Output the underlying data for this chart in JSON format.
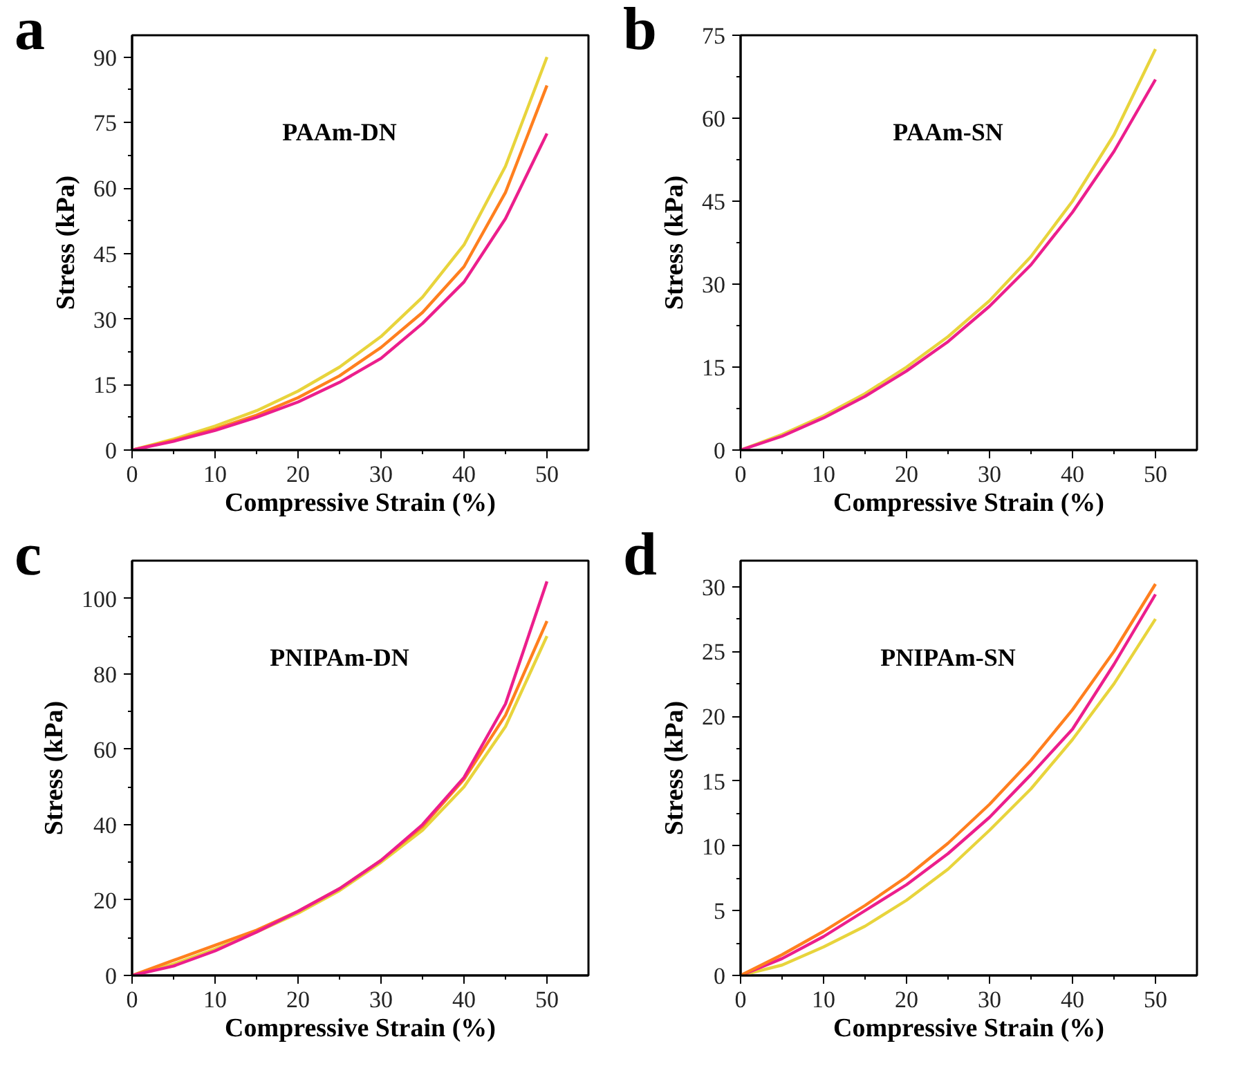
{
  "chart_data": [
    {
      "type": "line",
      "title": "PAAm-DN",
      "xlabel": "Compressive Strain (%)",
      "ylabel": "Stress (kPa)",
      "annotations": [
        "a"
      ],
      "xlim": [
        0,
        55
      ],
      "ylim": [
        0,
        95
      ],
      "xticks": [
        0,
        10,
        20,
        30,
        40,
        50
      ],
      "yticks": [
        0,
        15,
        30,
        45,
        60,
        75,
        90
      ],
      "line_style": "solid",
      "x": [
        0,
        5,
        10,
        15,
        20,
        25,
        30,
        35,
        40,
        45,
        50
      ],
      "series": [
        {
          "color": "#e8d43c",
          "values": [
            0,
            2.5,
            5.5,
            9,
            13.5,
            19,
            26,
            35,
            47,
            65,
            90
          ]
        },
        {
          "color": "#ff7f1e",
          "values": [
            0,
            2.2,
            4.8,
            8,
            12,
            17,
            23.5,
            31.5,
            42,
            59,
            83.5
          ]
        },
        {
          "color": "#ec1e8c",
          "values": [
            0,
            2,
            4.5,
            7.5,
            11,
            15.5,
            21,
            29,
            38.5,
            53,
            72.5
          ]
        }
      ]
    },
    {
      "type": "line",
      "title": "PAAm-SN",
      "xlabel": "Compressive Strain (%)",
      "ylabel": "Stress (kPa)",
      "annotations": [
        "b"
      ],
      "xlim": [
        0,
        55
      ],
      "ylim": [
        0,
        75
      ],
      "xticks": [
        0,
        10,
        20,
        30,
        40,
        50
      ],
      "yticks": [
        0,
        15,
        30,
        45,
        60,
        75
      ],
      "line_style": "solid",
      "x": [
        0,
        5,
        10,
        15,
        20,
        25,
        30,
        35,
        40,
        45,
        50
      ],
      "series": [
        {
          "color": "#e8d43c",
          "values": [
            0,
            2.8,
            6.2,
            10.2,
            15,
            20.5,
            27,
            35,
            45,
            57,
            72.5
          ]
        },
        {
          "color": "#ec1e8c",
          "values": [
            0,
            2.5,
            5.8,
            9.7,
            14.3,
            19.6,
            26,
            33.5,
            43,
            54,
            67
          ]
        }
      ]
    },
    {
      "type": "line",
      "title": "PNIPAm-DN",
      "xlabel": "Compressive Strain (%)",
      "ylabel": "Stress (kPa)",
      "annotations": [
        "c"
      ],
      "xlim": [
        0,
        55
      ],
      "ylim": [
        0,
        110
      ],
      "xticks": [
        0,
        10,
        20,
        30,
        40,
        50
      ],
      "yticks": [
        0,
        20,
        40,
        60,
        80,
        100
      ],
      "line_style": "solid",
      "x": [
        0,
        5,
        10,
        15,
        20,
        25,
        30,
        35,
        40,
        45,
        50
      ],
      "series": [
        {
          "color": "#e8d43c",
          "values": [
            0,
            3,
            7,
            11.5,
            16.5,
            22.5,
            30,
            38.5,
            50,
            66,
            90
          ]
        },
        {
          "color": "#ff7f1e",
          "values": [
            0,
            4,
            8,
            12,
            17,
            23,
            30.5,
            39.5,
            52,
            69,
            94
          ]
        },
        {
          "color": "#ec1e8c",
          "values": [
            0,
            2.5,
            6.5,
            11.5,
            17,
            23,
            30.5,
            40,
            52.5,
            72,
            104.5
          ]
        }
      ]
    },
    {
      "type": "line",
      "title": "PNIPAm-SN",
      "xlabel": "Compressive Strain (%)",
      "ylabel": "Stress (kPa)",
      "annotations": [
        "d"
      ],
      "xlim": [
        0,
        55
      ],
      "ylim": [
        0,
        32
      ],
      "xticks": [
        0,
        10,
        20,
        30,
        40,
        50
      ],
      "yticks": [
        0,
        5,
        10,
        15,
        20,
        25,
        30
      ],
      "line_style": "solid",
      "x": [
        0,
        5,
        10,
        15,
        20,
        25,
        30,
        35,
        40,
        45,
        50
      ],
      "series": [
        {
          "color": "#e8d43c",
          "values": [
            0,
            0.8,
            2.2,
            3.8,
            5.8,
            8.2,
            11.2,
            14.4,
            18.2,
            22.5,
            27.5
          ]
        },
        {
          "color": "#ec1e8c",
          "values": [
            0,
            1.3,
            3,
            5,
            7,
            9.4,
            12.2,
            15.5,
            19,
            24,
            29.4
          ]
        },
        {
          "color": "#ff7f1e",
          "values": [
            0,
            1.6,
            3.4,
            5.4,
            7.6,
            10.2,
            13.2,
            16.6,
            20.5,
            25,
            30.2
          ]
        }
      ]
    }
  ]
}
